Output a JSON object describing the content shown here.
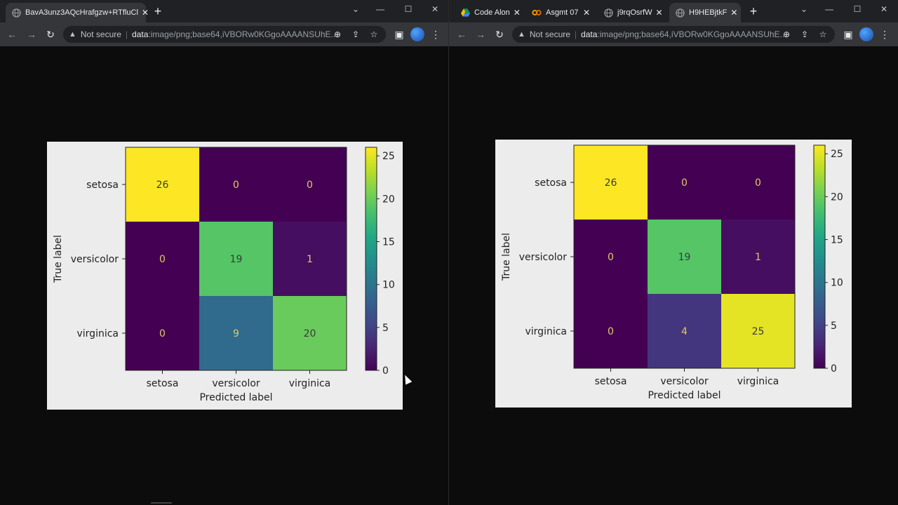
{
  "left_window": {
    "tabs": [
      {
        "label": "BavA3unz3AQcHrafgzw+RTfluCl",
        "icon": "globe-icon",
        "active": true
      }
    ],
    "address": {
      "security": "Not secure",
      "url_scheme": "data",
      "url_rest": ":image/png;base64,iVBORw0KGgoAAAANSUhE..."
    },
    "chart_data": {
      "type": "heatmap",
      "title": "",
      "xlabel": "Predicted label",
      "ylabel": "True label",
      "x_categories": [
        "setosa",
        "versicolor",
        "virginica"
      ],
      "y_categories": [
        "setosa",
        "versicolor",
        "virginica"
      ],
      "values": [
        [
          26,
          0,
          0
        ],
        [
          0,
          19,
          1
        ],
        [
          0,
          9,
          20
        ]
      ],
      "colormap": "viridis",
      "colorbar": {
        "min": 0,
        "max": 26,
        "ticks": [
          0,
          5,
          10,
          15,
          20,
          25
        ]
      }
    }
  },
  "right_window": {
    "tabs": [
      {
        "label": "Code Alon",
        "icon": "google-drive-icon",
        "active": false
      },
      {
        "label": "Asgmt 07",
        "icon": "colab-icon",
        "active": false
      },
      {
        "label": "j9rqOsrfW",
        "icon": "globe-icon",
        "active": false
      },
      {
        "label": "H9HEBjtkF",
        "icon": "globe-icon",
        "active": true
      }
    ],
    "address": {
      "security": "Not secure",
      "url_scheme": "data",
      "url_rest": ":image/png;base64,iVBORw0KGgoAAAANSUhE..."
    },
    "chart_data": {
      "type": "heatmap",
      "title": "",
      "xlabel": "Predicted label",
      "ylabel": "True label",
      "x_categories": [
        "setosa",
        "versicolor",
        "virginica"
      ],
      "y_categories": [
        "setosa",
        "versicolor",
        "virginica"
      ],
      "values": [
        [
          26,
          0,
          0
        ],
        [
          0,
          19,
          1
        ],
        [
          0,
          4,
          25
        ]
      ],
      "colormap": "viridis",
      "colorbar": {
        "min": 0,
        "max": 26,
        "ticks": [
          0,
          5,
          10,
          15,
          20,
          25
        ]
      }
    }
  },
  "colors": {
    "figure_bg": "#ececec",
    "tabstrip_bg": "#202124",
    "toolbar_bg": "#35363a",
    "page_bg": "#0c0c0c"
  }
}
